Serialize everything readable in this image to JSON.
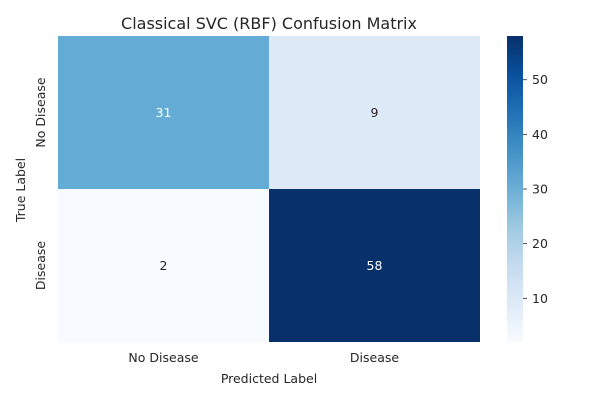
{
  "chart_data": {
    "type": "heatmap",
    "title": "Classical SVC (RBF) Confusion Matrix",
    "xlabel": "Predicted Label",
    "ylabel": "True Label",
    "x_categories": [
      "No Disease",
      "Disease"
    ],
    "y_categories": [
      "No Disease",
      "Disease"
    ],
    "values": [
      [
        31,
        9
      ],
      [
        2,
        58
      ]
    ],
    "colormap": "Blues",
    "colorbar_range": [
      2,
      58
    ],
    "colorbar_ticks": [
      10,
      20,
      30,
      40,
      50
    ],
    "cell_colors": [
      [
        "#64abd6",
        "#dde9f6"
      ],
      [
        "#f7fbff",
        "#08306b"
      ]
    ],
    "gradient_stops": [
      "#08306b",
      "#08519c",
      "#2171b5",
      "#4292c6",
      "#6baed6",
      "#9ecae1",
      "#c6dbef",
      "#deebf7",
      "#f7fbff"
    ],
    "label_colors": {
      "on_light": "#262626",
      "on_dark": "#ffffff"
    }
  }
}
